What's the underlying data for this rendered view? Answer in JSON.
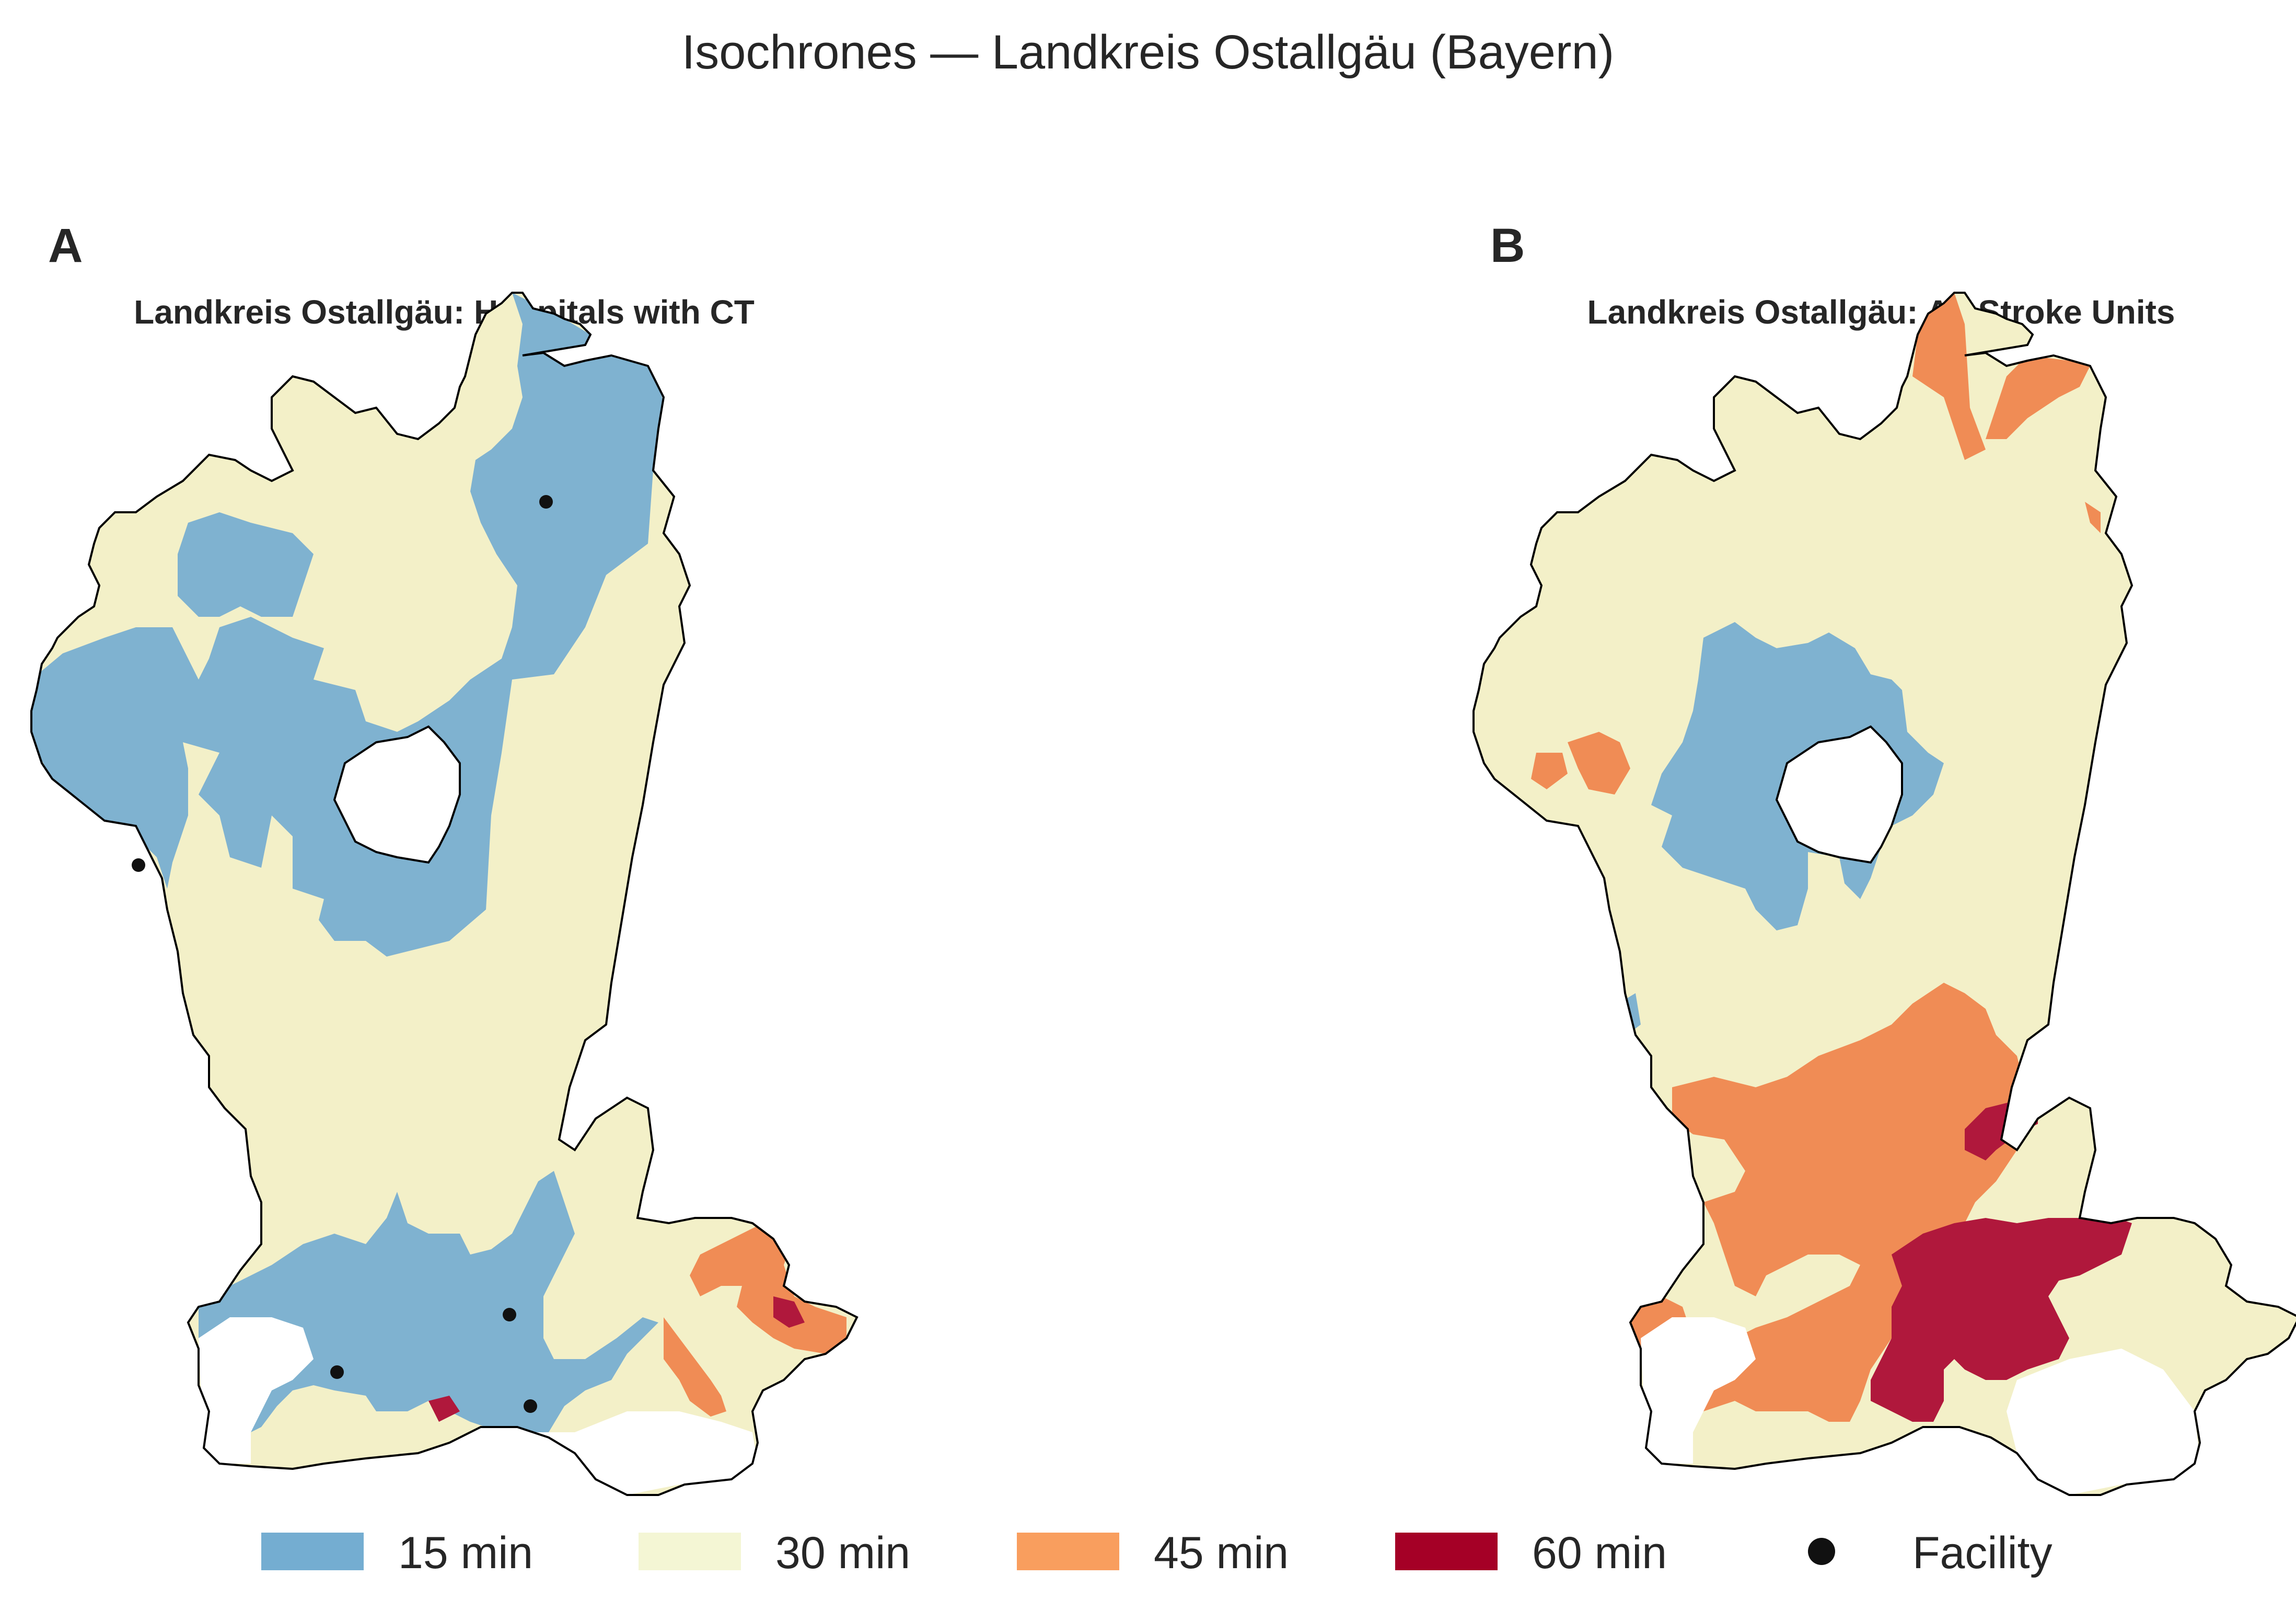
{
  "figure": {
    "title": "Isochrones — Landkreis Ostallgäu (Bayern)"
  },
  "panels": [
    {
      "letter": "A",
      "title": "Landkreis Ostallgäu: Hospitals with CT"
    },
    {
      "letter": "B",
      "title": "Landkreis Ostallgäu: All Stroke Units"
    }
  ],
  "legend": [
    {
      "label": "15 min",
      "color": "#74add1",
      "kind": "swatch"
    },
    {
      "label": "30 min",
      "color": "#f4f6d4",
      "kind": "swatch"
    },
    {
      "label": "45 min",
      "color": "#f99e5e",
      "kind": "swatch"
    },
    {
      "label": "60 min",
      "color": "#a50026",
      "kind": "swatch"
    },
    {
      "label": "Facility",
      "color": "#111111",
      "kind": "dot"
    }
  ],
  "colors": {
    "min15": "#7fb2d0",
    "min30": "#f3f0c8",
    "min45": "#f08c55",
    "min60": "#b0183c",
    "boundary": "#000000"
  }
}
